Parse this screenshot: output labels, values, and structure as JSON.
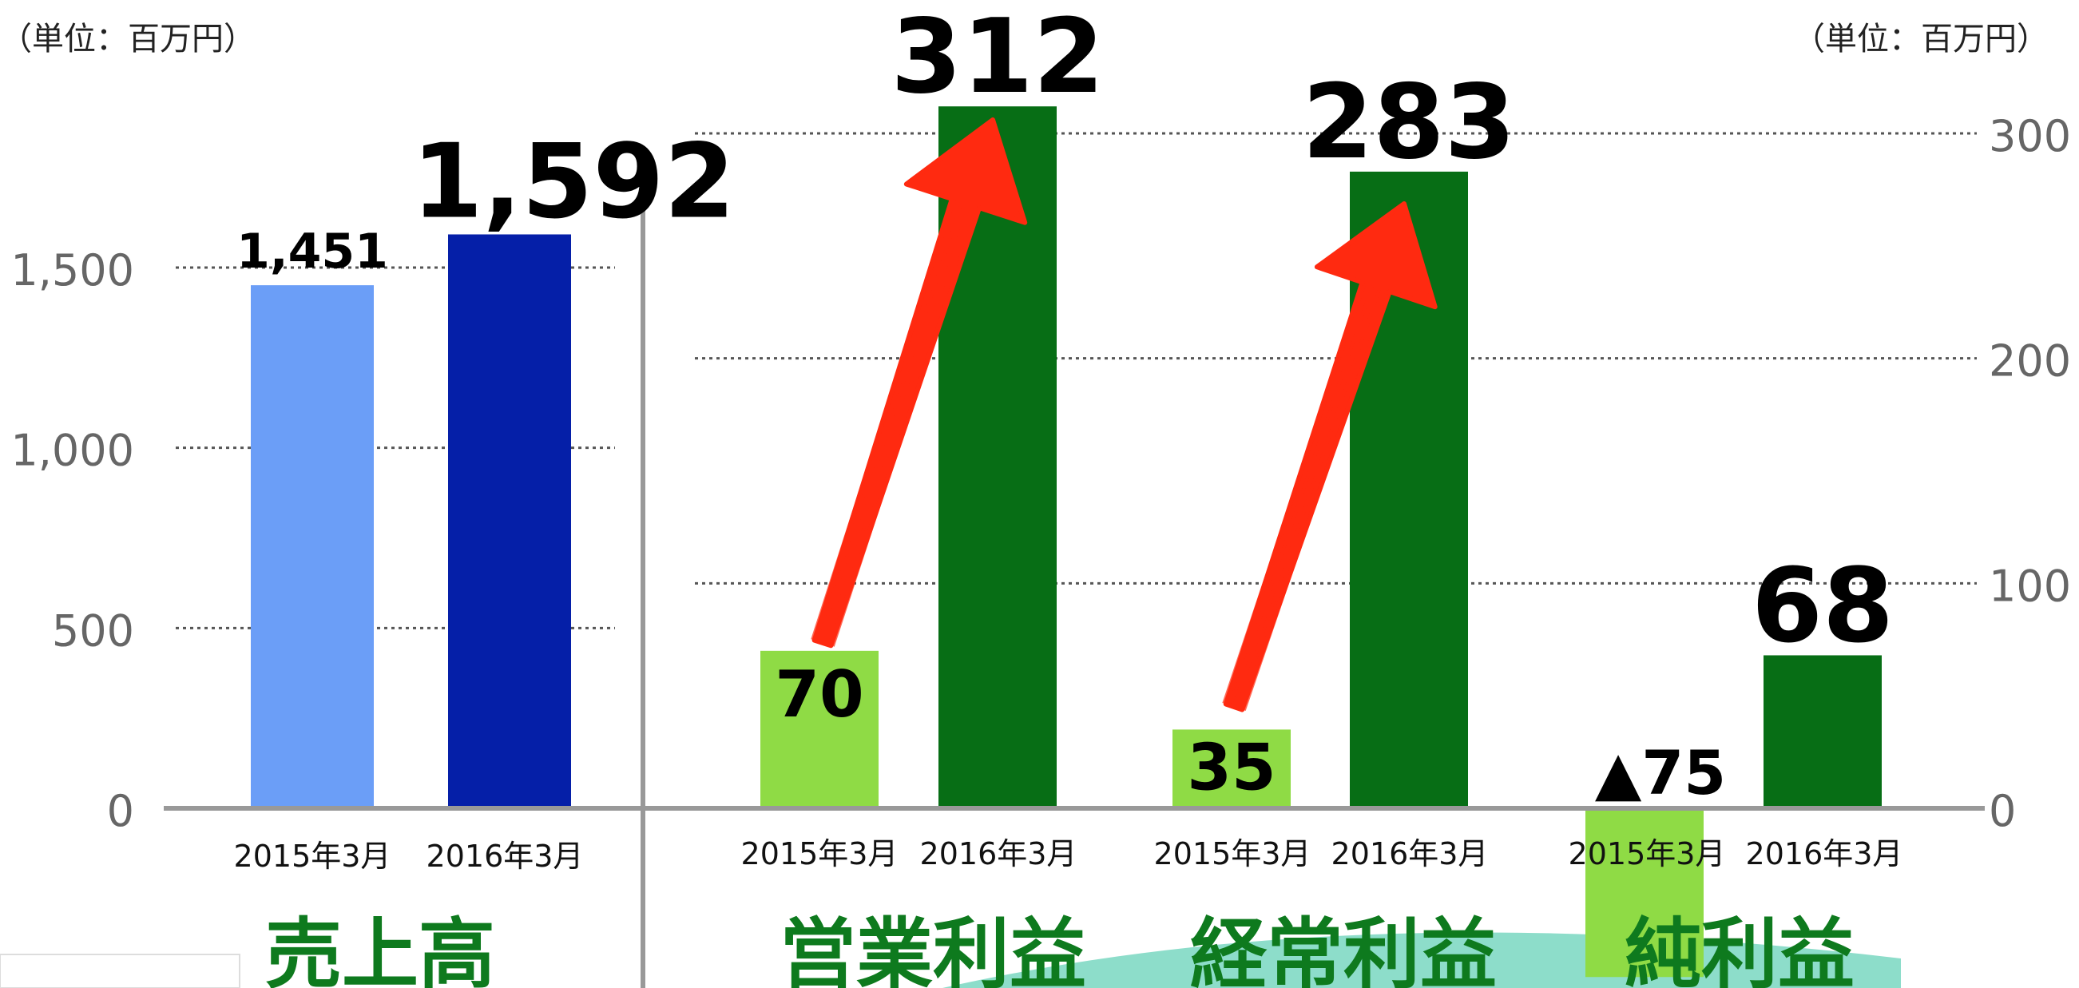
{
  "colors": {
    "sales_2015": "#6b9ef7",
    "sales_2016": "#051fa8",
    "profit_2015": "#8fdb45",
    "profit_2016": "#076e15",
    "category_label": "#0e7a1e",
    "arrow": "#ff2a10",
    "grid": "#555555",
    "axis": "#999999",
    "tick": "#666666",
    "swoosh": "#5ccfb4"
  },
  "chart_data": [
    {
      "type": "bar",
      "unit_label": "（単位：百万円）",
      "category": "売上高",
      "categories": [
        "2015年3月",
        "2016年3月"
      ],
      "values": [
        1451,
        1592
      ],
      "value_labels": [
        "1,451",
        "1,592"
      ],
      "ylim": [
        0,
        1700
      ],
      "yticks": [
        0,
        500,
        1000,
        1500
      ],
      "ytick_labels": [
        "0",
        "500",
        "1,000",
        "1,500"
      ],
      "grid": true,
      "axis_side": "left"
    },
    {
      "type": "bar",
      "unit_label": "（単位：百万円）",
      "ylim": [
        -50,
        320
      ],
      "yticks": [
        0,
        100,
        200,
        300
      ],
      "ytick_labels": [
        "0",
        "100",
        "200",
        "300"
      ],
      "grid": true,
      "axis_side": "right",
      "groups": [
        {
          "category": "営業利益",
          "categories": [
            "2015年3月",
            "2016年3月"
          ],
          "values": [
            70,
            312
          ],
          "value_labels": [
            "70",
            "312"
          ]
        },
        {
          "category": "経常利益",
          "categories": [
            "2015年3月",
            "2016年3月"
          ],
          "values": [
            35,
            283
          ],
          "value_labels": [
            "35",
            "283"
          ]
        },
        {
          "category": "純利益",
          "categories": [
            "2015年3月",
            "2016年3月"
          ],
          "values": [
            -75,
            68
          ],
          "value_labels": [
            "▲75",
            "68"
          ]
        }
      ]
    }
  ]
}
